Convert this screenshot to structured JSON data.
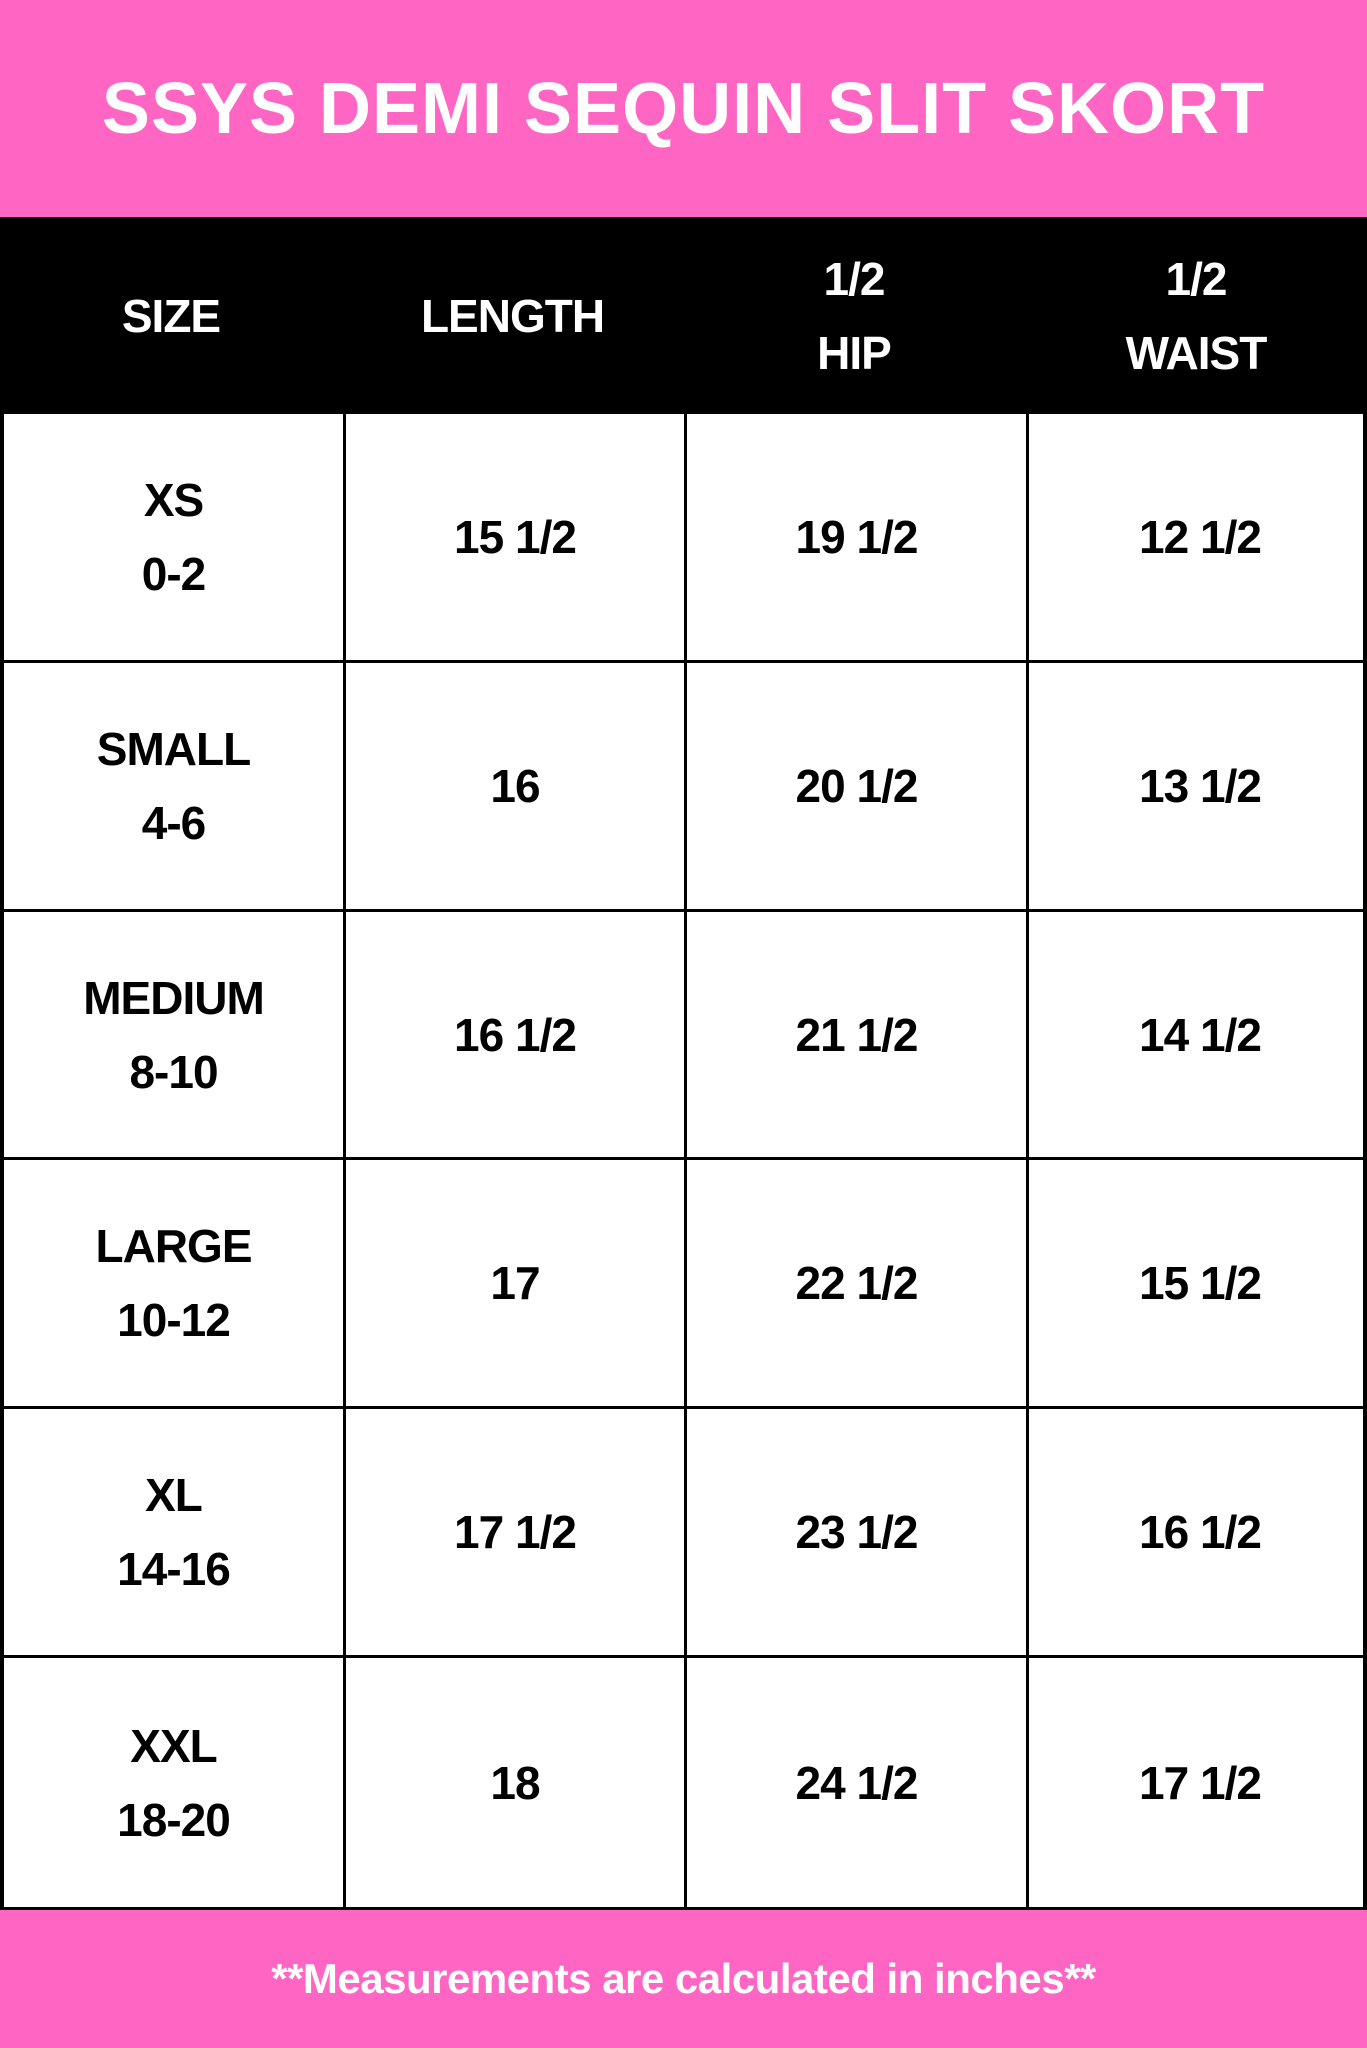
{
  "title": "SSYS DEMI SEQUIN SLIT SKORT",
  "colors": {
    "accent_pink": "#ff66c4",
    "header_bg": "#000000",
    "grid_line": "#000000"
  },
  "columns": [
    "SIZE",
    "LENGTH",
    "1/2\nHIP",
    "1/2\nWAIST"
  ],
  "rows": [
    {
      "size": "XS",
      "range": "0-2",
      "length": "15 1/2",
      "hip": "19 1/2",
      "waist": "12 1/2"
    },
    {
      "size": "SMALL",
      "range": "4-6",
      "length": "16",
      "hip": "20 1/2",
      "waist": "13 1/2"
    },
    {
      "size": "MEDIUM",
      "range": "8-10",
      "length": "16 1/2",
      "hip": "21 1/2",
      "waist": "14 1/2"
    },
    {
      "size": "LARGE",
      "range": "10-12",
      "length": "17",
      "hip": "22 1/2",
      "waist": "15 1/2"
    },
    {
      "size": "XL",
      "range": "14-16",
      "length": "17 1/2",
      "hip": "23 1/2",
      "waist": "16 1/2"
    },
    {
      "size": "XXL",
      "range": "18-20",
      "length": "18",
      "hip": "24 1/2",
      "waist": "17 1/2"
    }
  ],
  "footnote": "**Measurements are calculated in inches**"
}
